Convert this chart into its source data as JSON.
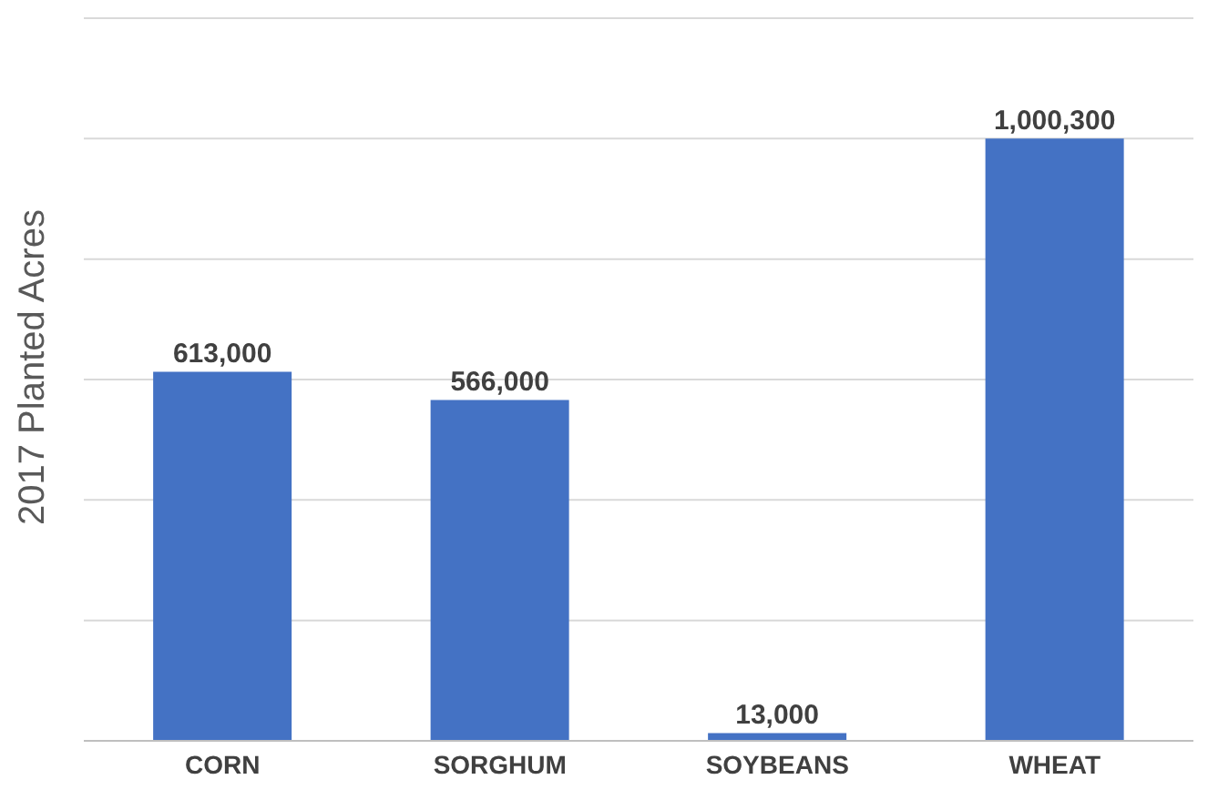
{
  "chart_data": {
    "type": "bar",
    "ylabel": "2017 Planted Acres",
    "categories": [
      "CORN",
      "SORGHUM",
      "SOYBEANS",
      "WHEAT"
    ],
    "values": [
      613000,
      566000,
      13000,
      1000300
    ],
    "color": "#4472c4",
    "value_labels": [
      "613,000",
      "566,000",
      "13,000",
      "1,000,300"
    ],
    "tick_labels": "x",
    "grid": "y"
  }
}
